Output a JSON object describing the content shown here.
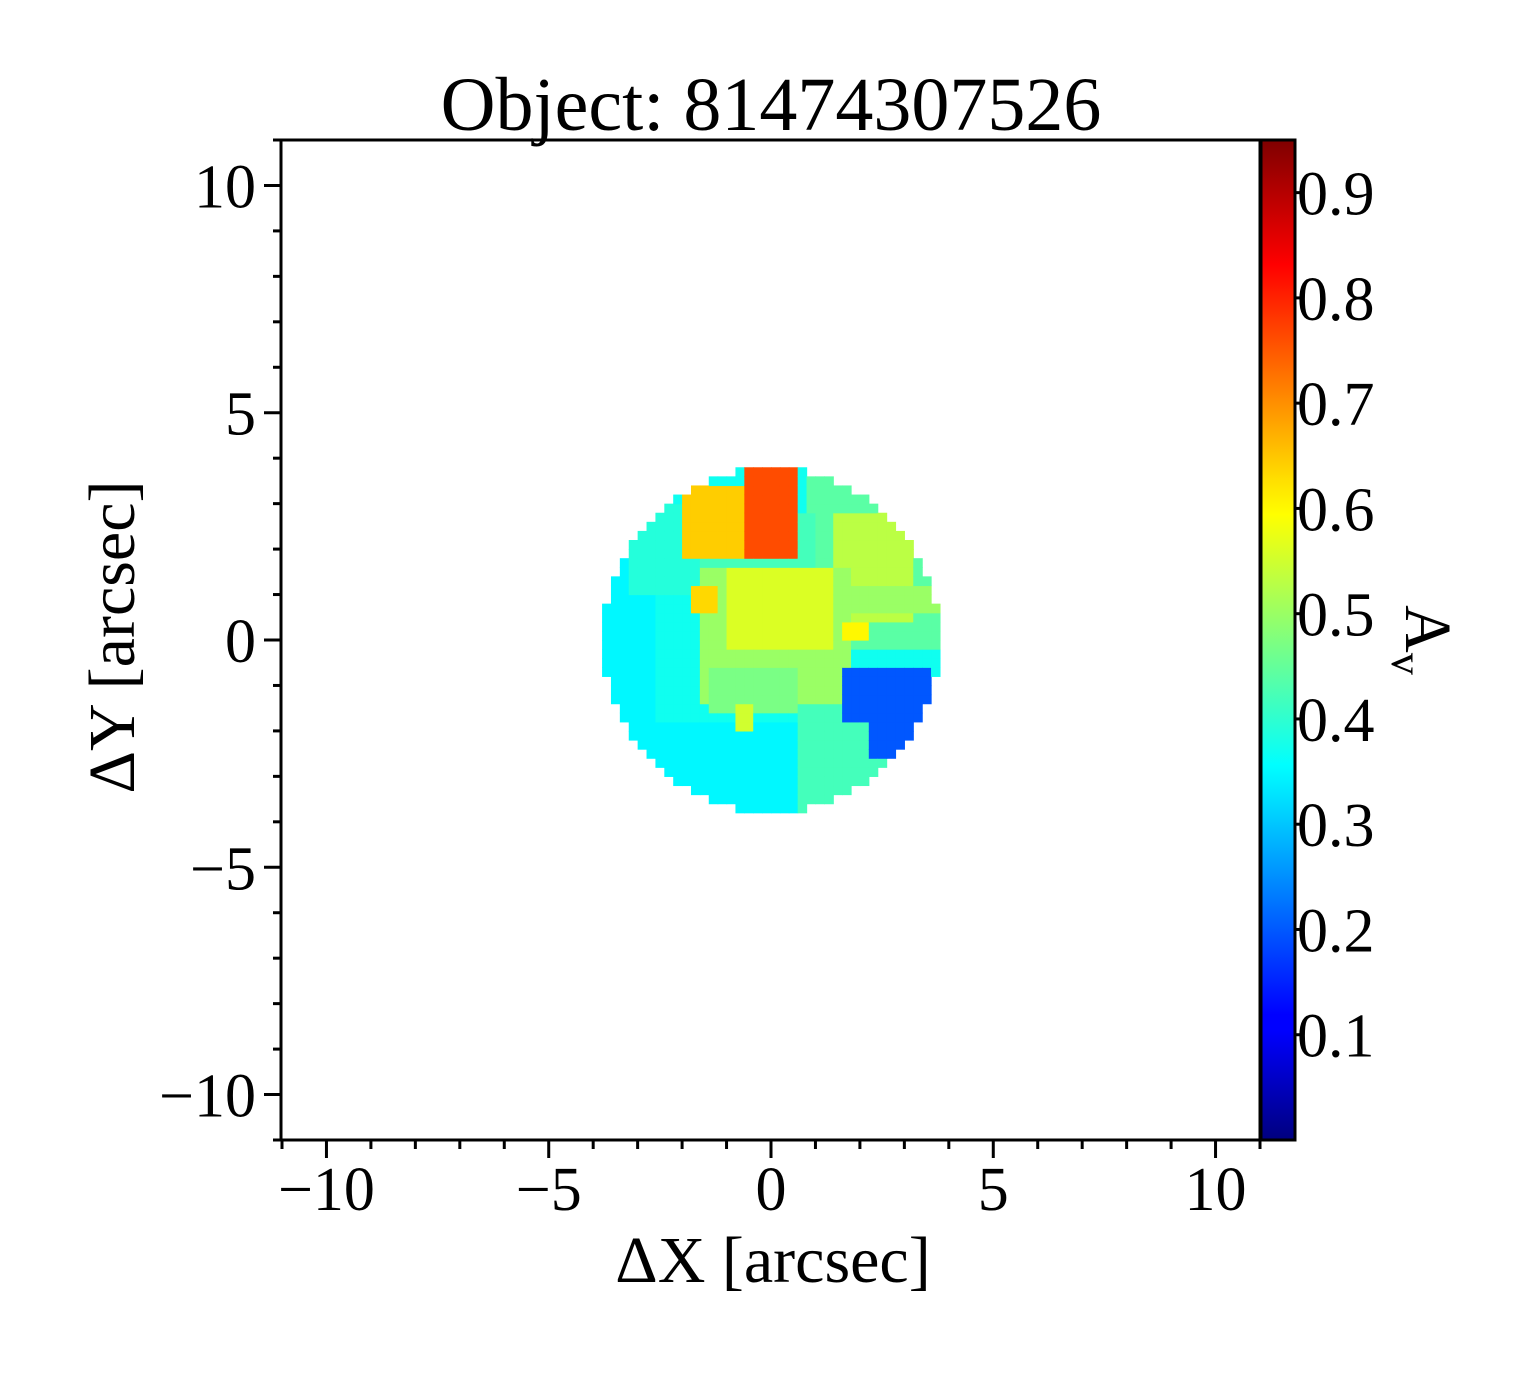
{
  "chart_data": {
    "type": "heatmap",
    "title": "Object: 81474307526",
    "xlabel": "ΔX [arcsec]",
    "ylabel": "ΔY [arcsec]",
    "xlim": [
      -11,
      11
    ],
    "ylim": [
      -11,
      11
    ],
    "x_ticks": [
      -10,
      -5,
      0,
      5,
      10
    ],
    "x_tick_labels": [
      "−10",
      "−5",
      "0",
      "5",
      "10"
    ],
    "y_ticks": [
      10,
      5,
      0,
      -5,
      -10
    ],
    "y_tick_labels": [
      "10",
      "5",
      "0",
      "−5",
      "−10"
    ],
    "grid": false,
    "colorbar": {
      "label": "A",
      "label_subscript": "v",
      "colormap": "jet",
      "vmin": 0.0,
      "vmax": 0.95,
      "ticks": [
        0.9,
        0.8,
        0.7,
        0.6,
        0.5,
        0.4,
        0.3,
        0.2,
        0.1
      ],
      "tick_labels": [
        "0.9",
        "0.8",
        "0.7",
        "0.6",
        "0.5",
        "0.4",
        "0.3",
        "0.2",
        "0.1"
      ]
    },
    "map": {
      "center": [
        0.0,
        0.0
      ],
      "radius": 3.8,
      "pixel_size": 0.2,
      "default_value": 0.37,
      "regions": [
        {
          "name": "north-east",
          "x0": 0.9,
          "x1": 4.0,
          "y0": -0.3,
          "y1": 3.8,
          "value": 0.44
        },
        {
          "name": "south-east",
          "x0": 0.6,
          "x1": 3.0,
          "y0": -4.0,
          "y1": -0.5,
          "value": 0.42
        },
        {
          "name": "west",
          "x0": -4.0,
          "x1": -2.5,
          "y0": -4.0,
          "y1": 3.8,
          "value": 0.35
        },
        {
          "name": "south-west",
          "x0": -2.6,
          "x1": 0.6,
          "y0": -4.0,
          "y1": -1.9,
          "value": 0.35
        },
        {
          "name": "north-west",
          "x0": -3.3,
          "x1": -1.5,
          "y0": 1.0,
          "y1": 3.1,
          "value": 0.39
        },
        {
          "name": "north-mid",
          "x0": -1.5,
          "x1": 1.0,
          "y0": 1.3,
          "y1": 2.8,
          "value": 0.42
        },
        {
          "name": "east-upper",
          "x0": 1.5,
          "x1": 3.2,
          "y0": 0.5,
          "y1": 2.8,
          "value": 0.53
        },
        {
          "name": "east-outer",
          "x0": 1.8,
          "x1": 4.0,
          "y0": 0.6,
          "y1": 1.2,
          "value": 0.5
        },
        {
          "name": "core",
          "x0": -1.6,
          "x1": 1.8,
          "y0": -1.3,
          "y1": 1.7,
          "value": 0.5
        },
        {
          "name": "core-north",
          "x0": -1.0,
          "x1": 1.5,
          "y0": -0.2,
          "y1": 1.7,
          "value": 0.56
        },
        {
          "name": "core-south",
          "x0": -1.3,
          "x1": 0.6,
          "y0": -1.5,
          "y1": -0.5,
          "value": 0.47
        },
        {
          "name": "west-knot",
          "x0": -1.8,
          "x1": -1.2,
          "y0": 0.7,
          "y1": 1.3,
          "value": 0.63
        },
        {
          "name": "south-knot",
          "x0": -0.8,
          "x1": -0.4,
          "y0": -2.0,
          "y1": -1.4,
          "value": 0.55
        },
        {
          "name": "east-knot",
          "x0": 1.7,
          "x1": 2.3,
          "y0": 0.0,
          "y1": 0.5,
          "value": 0.6
        },
        {
          "name": "north-yellow",
          "x0": -2.0,
          "x1": -0.6,
          "y0": 1.9,
          "y1": 3.4,
          "value": 0.64
        },
        {
          "name": "north-orange",
          "x0": -0.6,
          "x1": 0.7,
          "y0": 1.9,
          "y1": 3.8,
          "value": 0.76
        },
        {
          "name": "east-blue",
          "x0": 1.7,
          "x1": 3.7,
          "y0": -1.9,
          "y1": -0.5,
          "value": 0.2
        },
        {
          "name": "east-blue-tail",
          "x0": 2.3,
          "x1": 3.2,
          "y0": -2.5,
          "y1": -1.8,
          "value": 0.2
        },
        {
          "name": "blue-dot",
          "x0": 1.4,
          "x1": 1.6,
          "y0": -0.7,
          "y1": -0.5,
          "value": 0.2
        }
      ]
    }
  }
}
